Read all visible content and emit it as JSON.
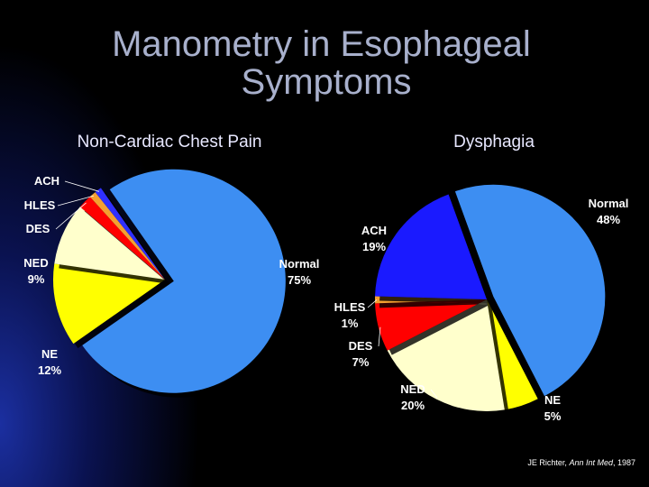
{
  "title": "Manometry in Esophageal Symptoms",
  "citation": [
    "JE Richter, ",
    "Ann Int Med",
    ", 1987"
  ],
  "chart_data": [
    {
      "type": "pie",
      "title": "Non-Cardiac Chest Pain",
      "categories": [
        "Normal",
        "NE",
        "NED",
        "DES",
        "HLES",
        "ACH"
      ],
      "values": [
        75,
        12,
        9,
        2,
        1,
        1
      ],
      "value_labels": [
        "75%",
        "12%",
        "9%",
        null,
        null,
        null
      ],
      "colors": [
        "#3d8ef2",
        "#ffff00",
        "#ffffcc",
        "#ff0000",
        "#f4a030",
        "#3030ff"
      ]
    },
    {
      "type": "pie",
      "title": "Dysphagia",
      "categories": [
        "Normal",
        "NE",
        "NED",
        "DES",
        "HLES",
        "ACH"
      ],
      "values": [
        48,
        5,
        20,
        7,
        1,
        19
      ],
      "value_labels": [
        "48%",
        "5%",
        "20%",
        "7%",
        "1%",
        "19%"
      ],
      "colors": [
        "#3d8ef2",
        "#ffff00",
        "#ffffcc",
        "#ff0000",
        "#f4a030",
        "#1a1aff"
      ]
    }
  ]
}
